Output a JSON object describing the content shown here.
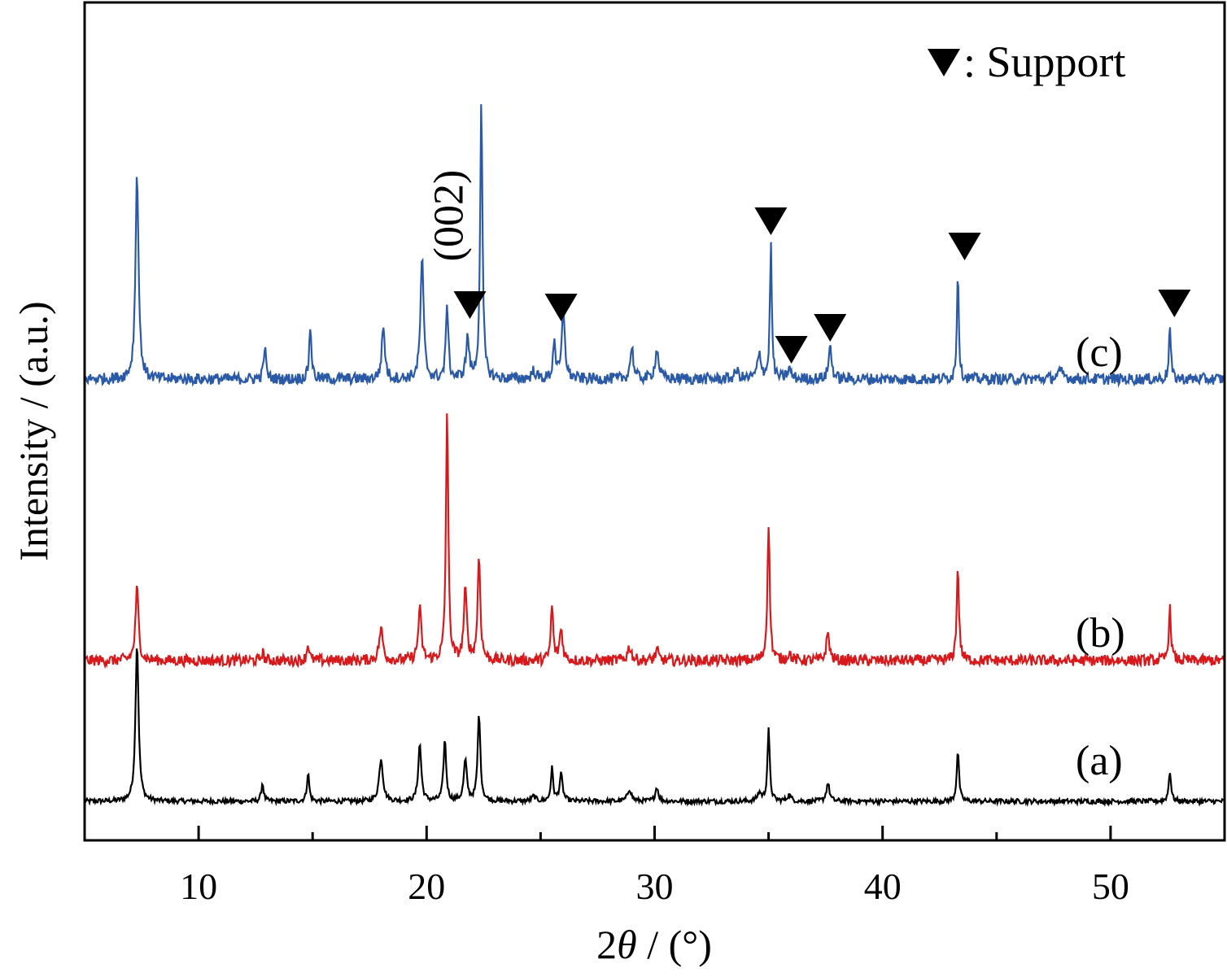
{
  "chart_data": {
    "type": "line",
    "title": "",
    "xlabel_prefix": "2",
    "xlabel_theta": "θ",
    "xlabel_suffix": " / (°)",
    "ylabel": "Intensity / (a.u.)",
    "xlim": [
      5,
      55
    ],
    "xticks": [
      "10",
      "20",
      "30",
      "40",
      "50"
    ],
    "xtick_values": [
      10,
      20,
      30,
      40,
      50
    ],
    "minor_xtick_values": [
      15,
      25,
      35,
      45
    ],
    "grid": false,
    "legend": {
      "marker_label": "▼",
      "text": ": Support",
      "placement": "top-right"
    },
    "annotation": {
      "text": "(002)",
      "x": 21.0
    },
    "support_markers": [
      21.9,
      25.9,
      35.1,
      36.0,
      37.7,
      43.6,
      52.8
    ],
    "series": [
      {
        "label": "(a)",
        "color": "#000000",
        "baseline": 0,
        "noise": 6,
        "peaks": [
          [
            7.3,
            390,
            0.08
          ],
          [
            12.8,
            45,
            0.06
          ],
          [
            14.8,
            70,
            0.06
          ],
          [
            18.0,
            105,
            0.1
          ],
          [
            19.7,
            140,
            0.08
          ],
          [
            20.8,
            150,
            0.07
          ],
          [
            21.7,
            100,
            0.08
          ],
          [
            22.3,
            215,
            0.07
          ],
          [
            24.7,
            12,
            0.1
          ],
          [
            25.5,
            80,
            0.06
          ],
          [
            25.9,
            65,
            0.08
          ],
          [
            28.9,
            30,
            0.1
          ],
          [
            30.1,
            35,
            0.08
          ],
          [
            34.6,
            20,
            0.1
          ],
          [
            35.0,
            175,
            0.06
          ],
          [
            35.9,
            15,
            0.1
          ],
          [
            37.6,
            45,
            0.08
          ],
          [
            43.3,
            125,
            0.06
          ],
          [
            52.6,
            75,
            0.06
          ]
        ]
      },
      {
        "label": "(b)",
        "color": "#d7191c",
        "baseline": 0,
        "noise": 8,
        "peaks": [
          [
            7.3,
            105,
            0.08
          ],
          [
            12.8,
            12,
            0.06
          ],
          [
            14.8,
            25,
            0.06
          ],
          [
            18.0,
            45,
            0.1
          ],
          [
            19.7,
            75,
            0.08
          ],
          [
            20.9,
            365,
            0.06
          ],
          [
            21.7,
            100,
            0.08
          ],
          [
            22.3,
            150,
            0.07
          ],
          [
            25.5,
            80,
            0.06
          ],
          [
            25.9,
            45,
            0.08
          ],
          [
            28.9,
            20,
            0.1
          ],
          [
            30.1,
            15,
            0.08
          ],
          [
            35.0,
            200,
            0.06
          ],
          [
            35.9,
            10,
            0.1
          ],
          [
            37.6,
            40,
            0.08
          ],
          [
            43.3,
            135,
            0.06
          ],
          [
            52.6,
            75,
            0.06
          ]
        ]
      },
      {
        "label": "(c)",
        "color": "#2a5aa7",
        "baseline": 0,
        "noise": 7,
        "peaks": [
          [
            7.3,
            255,
            0.08
          ],
          [
            12.9,
            40,
            0.06
          ],
          [
            14.9,
            65,
            0.06
          ],
          [
            18.1,
            65,
            0.08
          ],
          [
            19.8,
            150,
            0.08
          ],
          [
            20.9,
            95,
            0.06
          ],
          [
            21.8,
            50,
            0.08
          ],
          [
            22.4,
            340,
            0.06
          ],
          [
            24.7,
            10,
            0.1
          ],
          [
            25.6,
            50,
            0.06
          ],
          [
            26.0,
            85,
            0.08
          ],
          [
            29.0,
            40,
            0.08
          ],
          [
            30.1,
            35,
            0.1
          ],
          [
            33.6,
            10,
            0.1
          ],
          [
            34.6,
            30,
            0.1
          ],
          [
            35.1,
            165,
            0.05
          ],
          [
            35.9,
            12,
            0.1
          ],
          [
            37.7,
            40,
            0.08
          ],
          [
            43.3,
            135,
            0.05
          ],
          [
            47.8,
            8,
            0.2
          ],
          [
            52.6,
            65,
            0.05
          ]
        ]
      }
    ]
  }
}
